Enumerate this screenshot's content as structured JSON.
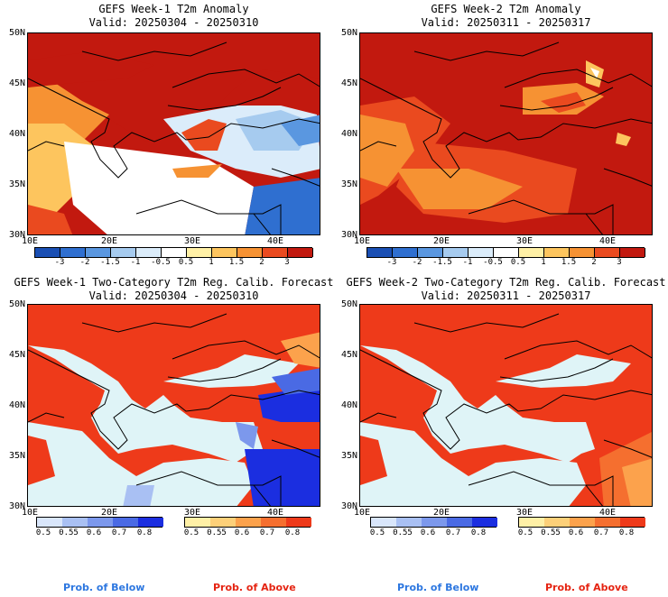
{
  "panels": [
    {
      "title1": "GEFS Week-1 T2m Anomaly",
      "title2": "Valid: 20250304 - 20250310"
    },
    {
      "title1": "GEFS Week-2 T2m Anomaly",
      "title2": "Valid: 20250311 - 20250317"
    },
    {
      "title1": "GEFS Week-1 Two-Category T2m Reg. Calib. Forecast",
      "title2": "Valid: 20250304 - 20250310"
    },
    {
      "title1": "GEFS Week-2 Two-Category T2m Reg. Calib. Forecast",
      "title2": "Valid: 20250311 - 20250317"
    }
  ],
  "axes": {
    "lat": [
      "50N",
      "45N",
      "40N",
      "35N",
      "30N"
    ],
    "lon": [
      "10E",
      "20E",
      "30E",
      "40E"
    ]
  },
  "anomaly_scale": {
    "labels": [
      "-3",
      "-2",
      "-1.5",
      "-1",
      "-0.5",
      "0.5",
      "1",
      "1.5",
      "2",
      "3"
    ],
    "colors": [
      "#1a4fb4",
      "#2f6fd0",
      "#5a97e0",
      "#a6cbef",
      "#dbecfa",
      "#ffffff",
      "#fff0a6",
      "#fdc55e",
      "#f69233",
      "#ea4a1f",
      "#c2190f"
    ]
  },
  "prob_scale": {
    "labels": [
      "0.5",
      "0.55",
      "0.6",
      "0.7",
      "0.8"
    ],
    "below_colors": [
      "#d9e6fb",
      "#a9c0f3",
      "#7c98ec",
      "#4a6ae4",
      "#1b2ee0"
    ],
    "above_colors": [
      "#fff0a6",
      "#fdd079",
      "#fca24c",
      "#f56f2f",
      "#ee3a1a"
    ]
  },
  "footer": {
    "below": "Prob. of Below",
    "above": "Prob. of Above"
  },
  "colors": {
    "below_text": "#2d77e0",
    "above_text": "#e52412",
    "sea": "#dff4f7",
    "border": "#000000"
  }
}
